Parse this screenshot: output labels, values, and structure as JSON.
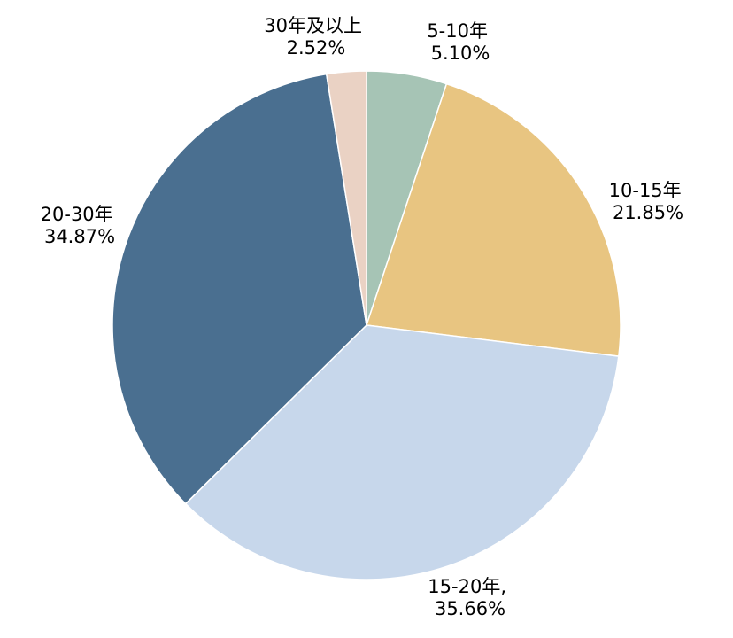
{
  "chart_data": {
    "type": "pie",
    "start_angle_deg": 0,
    "direction": "clockwise",
    "slices": [
      {
        "category": "5-10年",
        "value": 5.1,
        "value_label": "5.10%",
        "color": "#a6c4b5"
      },
      {
        "category": "10-15年",
        "value": 21.85,
        "value_label": "21.85%",
        "color": "#e8c581"
      },
      {
        "category": "15-20年,",
        "value": 35.66,
        "value_label": "35.66%",
        "color": "#c7d7eb"
      },
      {
        "category": "20-30年",
        "value": 34.87,
        "value_label": "34.87%",
        "color": "#4a6f90"
      },
      {
        "category": "30年及以上",
        "value": 2.52,
        "value_label": "2.52%",
        "color": "#ead2c4"
      }
    ]
  }
}
